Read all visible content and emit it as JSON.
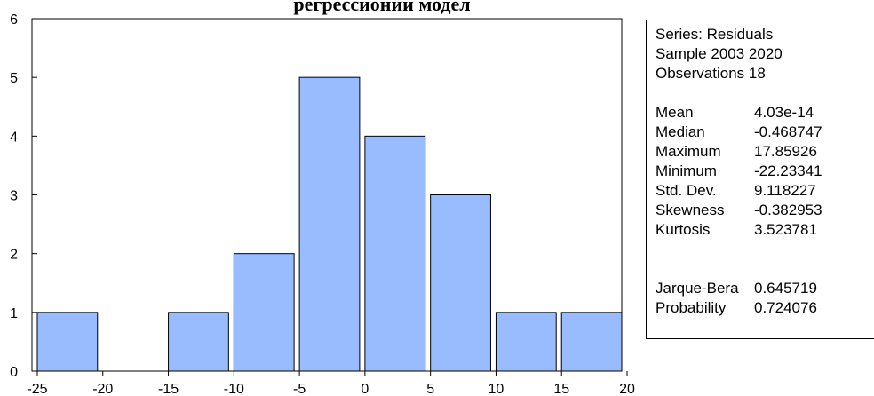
{
  "chart_data": {
    "type": "bar",
    "title": "регрессионии модел",
    "xlabel": "",
    "ylabel": "",
    "bins": [
      {
        "from": -25,
        "to": -20,
        "count": 1
      },
      {
        "from": -20,
        "to": -15,
        "count": 0
      },
      {
        "from": -15,
        "to": -10,
        "count": 1
      },
      {
        "from": -10,
        "to": -5,
        "count": 2
      },
      {
        "from": -5,
        "to": 0,
        "count": 5
      },
      {
        "from": 0,
        "to": 5,
        "count": 4
      },
      {
        "from": 5,
        "to": 10,
        "count": 3
      },
      {
        "from": 10,
        "to": 15,
        "count": 1
      },
      {
        "from": 15,
        "to": 20,
        "count": 1
      }
    ],
    "x_ticks": [
      "-25",
      "-20",
      "-15",
      "-10",
      "-5",
      "0",
      "5",
      "10",
      "15",
      "20"
    ],
    "y_ticks": [
      "0",
      "1",
      "2",
      "3",
      "4",
      "5",
      "6"
    ],
    "xlim": [
      -25,
      20
    ],
    "ylim": [
      0,
      6
    ],
    "grid": false,
    "bar_color": "#99BBFF",
    "edge_color": "#000000"
  },
  "stats": {
    "header": [
      "Series: Residuals",
      "Sample 2003 2020",
      "Observations 18"
    ],
    "rows": [
      {
        "name": "Mean",
        "value": "4.03e-14"
      },
      {
        "name": "Median",
        "value": "-0.468747"
      },
      {
        "name": "Maximum",
        "value": "17.85926"
      },
      {
        "name": "Minimum",
        "value": "-22.23341"
      },
      {
        "name": "Std. Dev.",
        "value": "9.118227"
      },
      {
        "name": "Skewness",
        "value": "-0.382953"
      },
      {
        "name": "Kurtosis",
        "value": "3.523781"
      }
    ],
    "tests": [
      {
        "name": "Jarque-Bera",
        "value": "0.645719"
      },
      {
        "name": "Probability",
        "value": "0.724076"
      }
    ]
  }
}
